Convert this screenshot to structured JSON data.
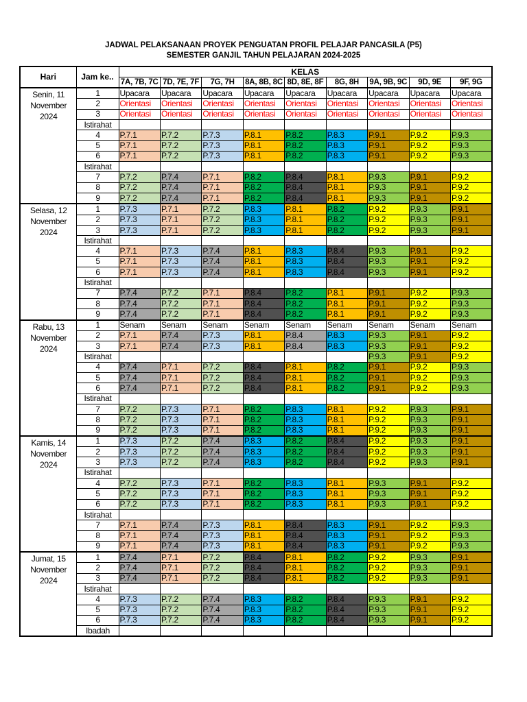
{
  "title_line1": "JADWAL PELAKSANAAN PROYEK PENGUATAN PROFIL PELAJAR PANCASILA (P5)",
  "title_line2": "SEMESTER GANJIL TAHUN PELAJARAN 2024-2025",
  "headers": {
    "hari": "Hari",
    "jam": "Jam ke..",
    "kelas": "KELAS"
  },
  "classes": [
    "7A, 7B, 7C",
    "7D, 7E, 7F",
    "7G, 7H",
    "8A, 8B, 8C",
    "8D, 8E, 8F",
    "8G, 8H",
    "9A, 9B, 9C",
    "9D, 9E",
    "9F, 9G"
  ],
  "colors": {
    "P.7.1": "#f8cbad",
    "P.7.2": "#c6e0b4",
    "P.7.3": "#bdd7ee",
    "P.7.4": "#a6a6a6",
    "P.8.1": "#ffc000",
    "P.8.2": "#00b050",
    "P.8.3": "#00b0f0",
    "P.8.4": "#505050",
    "P.9.1": "#bf8f00",
    "P.9.2": "#ffff00",
    "P.9.3": "#92d050",
    "light-gray": "#a6a6a6",
    "orientasi_text": "#ff0000"
  },
  "days": [
    {
      "hari": [
        "Senin, 11",
        "November",
        "2024"
      ],
      "rows": [
        {
          "jam": "1",
          "cells": [
            "Upacara",
            "Upacara",
            "Upacara",
            "Upacara",
            "Upacara",
            "Upacara",
            "Upacara",
            "Upacara",
            "Upacara"
          ]
        },
        {
          "jam": "2",
          "cells": [
            "Orientasi",
            "Orientasi",
            "Orientasi",
            "Orientasi",
            "Orientasi",
            "Orientasi",
            "Orientasi",
            "Orientasi",
            "Orientasi"
          ]
        },
        {
          "jam": "3",
          "cells": [
            "Orientasi",
            "Orientasi",
            "Orientasi",
            "Orientasi",
            "Orientasi",
            "Orientasi",
            "Orientasi",
            "Orientasi",
            "Orientasi"
          ]
        },
        {
          "jam": "Istirahat",
          "cells": [
            "",
            "",
            "",
            "",
            "",
            "",
            "",
            "",
            ""
          ]
        },
        {
          "jam": "4",
          "cells": [
            "P.7.1",
            "P.7.2",
            "P.7.3",
            "P.8.1",
            "P.8.2",
            "P.8.3",
            "P.9.1",
            "P.9.2",
            "P.9.3"
          ]
        },
        {
          "jam": "5",
          "cells": [
            "P.7.1",
            "P.7.2",
            "P.7.3",
            "P.8.1",
            "P.8.2",
            "P.8.3",
            "P.9.1",
            "P.9.2",
            "P.9.3"
          ]
        },
        {
          "jam": "6",
          "cells": [
            "P.7.1",
            "P.7.2",
            "P.7.3",
            "P.8.1",
            "P.8.2",
            "P.8.3",
            "P.9.1",
            "P.9.2",
            "P.9.3"
          ]
        },
        {
          "jam": "Istirahat",
          "cells": [
            "",
            "",
            "",
            "",
            "",
            "",
            "",
            "",
            ""
          ]
        },
        {
          "jam": "7",
          "cells": [
            "P.7.2",
            "P.7.4",
            "P.7.1",
            "P.8.2",
            "P.8.4",
            "P.8.1",
            "P.9.3",
            "P.9.1",
            "P.9.2"
          ]
        },
        {
          "jam": "8",
          "cells": [
            "P.7.2",
            "P.7.4",
            "P.7.1",
            "P.8.2",
            "P.8.4",
            "P.8.1",
            "P.9.3",
            "P.9.1",
            "P.9.2"
          ]
        },
        {
          "jam": "9",
          "cells": [
            "P.7.2",
            "P.7.4",
            "P.7.1",
            "P.8.2",
            "P.8.4",
            "P.8.1",
            "P.9.3",
            "P.9.1",
            "P.9.2"
          ]
        }
      ]
    },
    {
      "hari": [
        "Selasa, 12",
        "November",
        "2024"
      ],
      "rows": [
        {
          "jam": "1",
          "cells": [
            "P.7.3",
            "P.7.1",
            "P.7.2",
            "P.8.3",
            "P.8.1",
            "P.8.2",
            "P.9.2",
            "P.9.3",
            "P.9.1"
          ]
        },
        {
          "jam": "2",
          "cells": [
            "P.7.3",
            "P.7.1",
            "P.7.2",
            "P.8.3",
            "P.8.1",
            "P.8.2",
            "P.9.2",
            "P.9.3",
            "P.9.1"
          ]
        },
        {
          "jam": "3",
          "cells": [
            "P.7.3",
            "P.7.1",
            "P.7.2",
            "P.8.3",
            "P.8.1",
            "P.8.2",
            "P.9.2",
            "P.9.3",
            "P.9.1"
          ]
        },
        {
          "jam": "Istirahat",
          "cells": [
            "",
            "",
            "",
            "",
            "",
            "",
            "",
            "",
            ""
          ]
        },
        {
          "jam": "4",
          "cells": [
            "P.7.1",
            "P.7.3",
            "P.7.4",
            "P.8.1",
            "P.8.3",
            "P.8.4",
            "P.9.3",
            "P.9.1",
            "P.9.2"
          ]
        },
        {
          "jam": "5",
          "cells": [
            "P.7.1",
            "P.7.3",
            "P.7.4",
            "P.8.1",
            "P.8.3",
            "P.8.4",
            "P.9.3",
            "P.9.1",
            "P.9.2"
          ]
        },
        {
          "jam": "6",
          "cells": [
            "P.7.1",
            "P.7.3",
            "P.7.4",
            "P.8.1",
            "P.8.3",
            "P.8.4",
            "P.9.3",
            "P.9.1",
            "P.9.2"
          ]
        },
        {
          "jam": "Istirahat",
          "cells": [
            "",
            "",
            "",
            "",
            "",
            "",
            "",
            "",
            ""
          ]
        },
        {
          "jam": "7",
          "cells": [
            "P.7.4",
            "P.7.2",
            "P.7.1",
            "P.8.4",
            "P.8.2",
            "P.8.1",
            "P.9.1",
            "P.9.2",
            "P.9.3"
          ]
        },
        {
          "jam": "8",
          "cells": [
            "P.7.4",
            "P.7.2",
            "P.7.1",
            "P.8.4",
            "P.8.2",
            "P.8.1",
            "P.9.1",
            "P.9.2",
            "P.9.3"
          ]
        },
        {
          "jam": "9",
          "cells": [
            "P.7.4",
            "P.7.2",
            "P.7.1",
            "P.8.4",
            "P.8.2",
            "P.8.1",
            "P.9.1",
            "P.9.2",
            "P.9.3"
          ]
        }
      ]
    },
    {
      "hari": [
        "Rabu, 13",
        "November",
        "2024"
      ],
      "rows": [
        {
          "jam": "1",
          "cells": [
            "Senam",
            "Senam",
            "Senam",
            "Senam",
            "Senam",
            "Senam",
            "Senam",
            "Senam",
            "Senam"
          ]
        },
        {
          "jam": "2",
          "cells": [
            "P.7.1",
            "P.7.4",
            "P.7.3",
            "P.8.1",
            [
              "P.8.4",
              "light-gray"
            ],
            "P.8.3",
            "P.9.3",
            "P.9.1",
            "P.9.2"
          ]
        },
        {
          "jam": "3",
          "cells": [
            "P.7.1",
            "P.7.4",
            "P.7.3",
            "P.8.1",
            [
              "P.8.4",
              "light-gray"
            ],
            "P.8.3",
            "P.9.3",
            "P.9.1",
            "P.9.2"
          ]
        },
        {
          "jam": "Istirahat",
          "cells": [
            "",
            "",
            "",
            "",
            "",
            "",
            "P.9.3",
            "P.9.1",
            "P.9.2"
          ]
        },
        {
          "jam": "4",
          "cells": [
            "P.7.4",
            "P.7.1",
            "P.7.2",
            "P.8.4",
            "P.8.1",
            "P.8.2",
            "P.9.1",
            "P.9.2",
            "P.9.3"
          ]
        },
        {
          "jam": "5",
          "cells": [
            "P.7.4",
            "P.7.1",
            "P.7.2",
            "P.8.4",
            "P.8.1",
            "P.8.2",
            "P.9.1",
            "P.9.2",
            "P.9.3"
          ]
        },
        {
          "jam": "6",
          "cells": [
            "P.7.4",
            "P.7.1",
            "P.7.2",
            "P.8.4",
            "P.8.1",
            "P.8.2",
            "P.9.1",
            "P.9.2",
            "P.9.3"
          ]
        },
        {
          "jam": "Istirahat",
          "cells": [
            "",
            "",
            "",
            "",
            "",
            "",
            "",
            "",
            ""
          ]
        },
        {
          "jam": "7",
          "cells": [
            "P.7.2",
            "P.7.3",
            "P.7.1",
            "P.8.2",
            "P.8.3",
            "P.8.1",
            "P.9.2",
            "P.9.3",
            "P.9.1"
          ]
        },
        {
          "jam": "8",
          "cells": [
            "P.7.2",
            "P.7.3",
            "P.7.1",
            "P.8.2",
            "P.8.3",
            "P.8.1",
            "P.9.2",
            "P.9.3",
            "P.9.1"
          ]
        },
        {
          "jam": "9",
          "cells": [
            "P.7.2",
            "P.7.3",
            "P.7.1",
            "P.8.2",
            "P.8.3",
            "P.8.1",
            "P.9.2",
            "P.9.3",
            "P.9.1"
          ]
        }
      ]
    },
    {
      "hari": [
        "Kamis, 14",
        "November",
        "2024"
      ],
      "rows": [
        {
          "jam": "1",
          "cells": [
            "P.7.3",
            "P.7.2",
            "P.7.4",
            "P.8.3",
            "P.8.2",
            "P.8.4",
            "P.9.2",
            "P.9.3",
            "P.9.1"
          ]
        },
        {
          "jam": "2",
          "cells": [
            "P.7.3",
            "P.7.2",
            "P.7.4",
            "P.8.3",
            "P.8.2",
            "P.8.4",
            "P.9.2",
            "P.9.3",
            "P.9.1"
          ]
        },
        {
          "jam": "3",
          "cells": [
            "P.7.3",
            "P.7.2",
            "P.7.4",
            "P.8.3",
            "P.8.2",
            "P.8.4",
            "P.9.2",
            "P.9.3",
            "P.9.1"
          ]
        },
        {
          "jam": "Istirahat",
          "cells": [
            "",
            "",
            "",
            "",
            "",
            "",
            "",
            "",
            ""
          ]
        },
        {
          "jam": "4",
          "cells": [
            "P.7.2",
            "P.7.3",
            "P.7.1",
            "P.8.2",
            "P.8.3",
            "P.8.1",
            "P.9.3",
            "P.9.1",
            "P.9.2"
          ]
        },
        {
          "jam": "5",
          "cells": [
            "P.7.2",
            "P.7.3",
            "P.7.1",
            "P.8.2",
            "P.8.3",
            "P.8.1",
            "P.9.3",
            "P.9.1",
            "P.9.2"
          ]
        },
        {
          "jam": "6",
          "cells": [
            "P.7.2",
            "P.7.3",
            "P.7.1",
            "P.8.2",
            "P.8.3",
            "P.8.1",
            "P.9.3",
            "P.9.1",
            "P.9.2"
          ]
        },
        {
          "jam": "Istirahat",
          "cells": [
            "",
            "",
            "",
            "",
            "",
            "",
            "",
            "",
            ""
          ]
        },
        {
          "jam": "7",
          "cells": [
            "P.7.1",
            "P.7.4",
            "P.7.3",
            "P.8.1",
            "P.8.4",
            "P.8.3",
            "P.9.1",
            "P.9.2",
            "P.9.3"
          ]
        },
        {
          "jam": "8",
          "cells": [
            "P.7.1",
            "P.7.4",
            "P.7.3",
            "P.8.1",
            "P.8.4",
            "P.8.3",
            "P.9.1",
            "P.9.2",
            "P.9.3"
          ]
        },
        {
          "jam": "9",
          "cells": [
            "P.7.1",
            "P.7.4",
            "P.7.3",
            "P.8.1",
            "P.8.4",
            "P.8.3",
            "P.9.1",
            "P.9.2",
            "P.9.3"
          ]
        }
      ]
    },
    {
      "hari": [
        "Jumat, 15",
        "November",
        "2024"
      ],
      "rows": [
        {
          "jam": "1",
          "cells": [
            "P.7.4",
            "P.7.1",
            "P.7.2",
            "P.8.4",
            "P.8.1",
            "P.8.2",
            "P.9.2",
            "P.9.3",
            "P.9.1"
          ]
        },
        {
          "jam": "2",
          "cells": [
            "P.7.4",
            "P.7.1",
            "P.7.2",
            "P.8.4",
            "P.8.1",
            "P.8.2",
            "P.9.2",
            "P.9.3",
            "P.9.1"
          ]
        },
        {
          "jam": "3",
          "cells": [
            "P.7.4",
            "P.7.1",
            "P.7.2",
            "P.8.4",
            "P.8.1",
            "P.8.2",
            "P.9.2",
            "P.9.3",
            "P.9.1"
          ]
        },
        {
          "jam": "Istirahat",
          "cells": [
            "",
            "",
            "",
            "",
            "",
            "",
            "",
            "",
            ""
          ]
        },
        {
          "jam": "4",
          "cells": [
            "P.7.3",
            "P.7.2",
            "P.7.4",
            "P.8.3",
            "P.8.2",
            "P.8.4",
            "P.9.3",
            "P.9.1",
            "P.9.2"
          ]
        },
        {
          "jam": "5",
          "cells": [
            "P.7.3",
            "P.7.2",
            "P.7.4",
            "P.8.3",
            "P.8.2",
            "P.8.4",
            "P.9.3",
            "P.9.1",
            "P.9.2"
          ]
        },
        {
          "jam": "6",
          "cells": [
            "P.7.3",
            "P.7.2",
            "P.7.4",
            "P.8.3",
            "P.8.2",
            "P.8.4",
            "P.9.3",
            "P.9.1",
            "P.9.2"
          ]
        },
        {
          "jam": "Ibadah",
          "cells": [
            "",
            "",
            "",
            "",
            "",
            "",
            "",
            "",
            ""
          ]
        }
      ]
    }
  ]
}
